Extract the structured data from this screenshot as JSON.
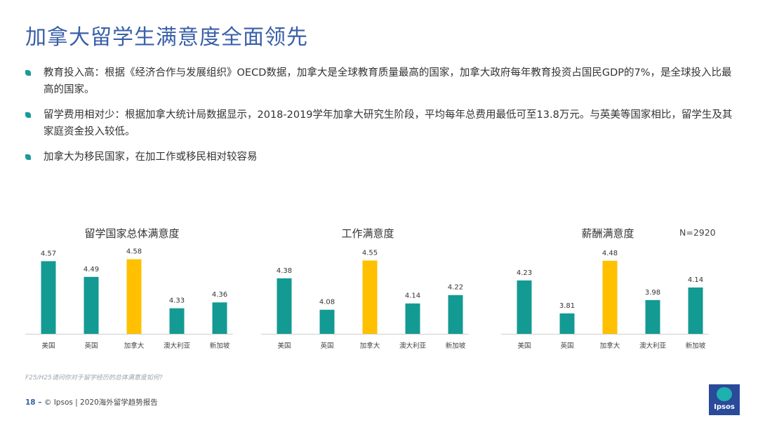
{
  "page": {
    "title": "加拿大留学生满意度全面领先",
    "bullets": [
      "教育投入高：根据《经济合作与发展组织》OECD数据，加拿大是全球教育质量最高的国家，加拿大政府每年教育投资占国民GDP的7%，是全球投入比最高的国家。",
      "留学费用相对少：根据加拿大统计局数据显示，2018-2019学年加拿大研究生阶段，平均每年总费用最低可至13.8万元。与英美等国家相比，留学生及其家庭资金投入较低。",
      "加拿大为移民国家，在加工作或移民相对较容易"
    ],
    "n_label": "N=2920",
    "footnote": "F25/H25请问你对于留学经历的总体满意度如何?",
    "footer_page": "18 –",
    "footer_text": "© Ipsos | 2020海外留学趋势报告",
    "logo_text": "Ipsos"
  },
  "colors": {
    "teal": "#139a93",
    "highlight": "#ffc000",
    "title": "#3a5fa8"
  },
  "chart_data": [
    {
      "type": "bar",
      "title": "留学国家总体满意度",
      "categories": [
        "美国",
        "英国",
        "加拿大",
        "澳大利亚",
        "新加坡"
      ],
      "values": [
        4.57,
        4.49,
        4.58,
        4.33,
        4.36
      ],
      "highlight_category": "加拿大",
      "ylim": [
        4.2,
        4.6
      ],
      "grid": false
    },
    {
      "type": "bar",
      "title": "工作满意度",
      "categories": [
        "美国",
        "英国",
        "加拿大",
        "澳大利亚",
        "新加坡"
      ],
      "values": [
        4.38,
        4.08,
        4.55,
        4.14,
        4.22
      ],
      "highlight_category": "加拿大",
      "ylim": [
        3.85,
        4.6
      ],
      "grid": false
    },
    {
      "type": "bar",
      "title": "薪酬满意度",
      "categories": [
        "美国",
        "英国",
        "加拿大",
        "澳大利亚",
        "新加坡"
      ],
      "values": [
        4.23,
        3.81,
        4.48,
        3.98,
        4.14
      ],
      "highlight_category": "加拿大",
      "ylim": [
        3.55,
        4.55
      ],
      "grid": false
    }
  ]
}
